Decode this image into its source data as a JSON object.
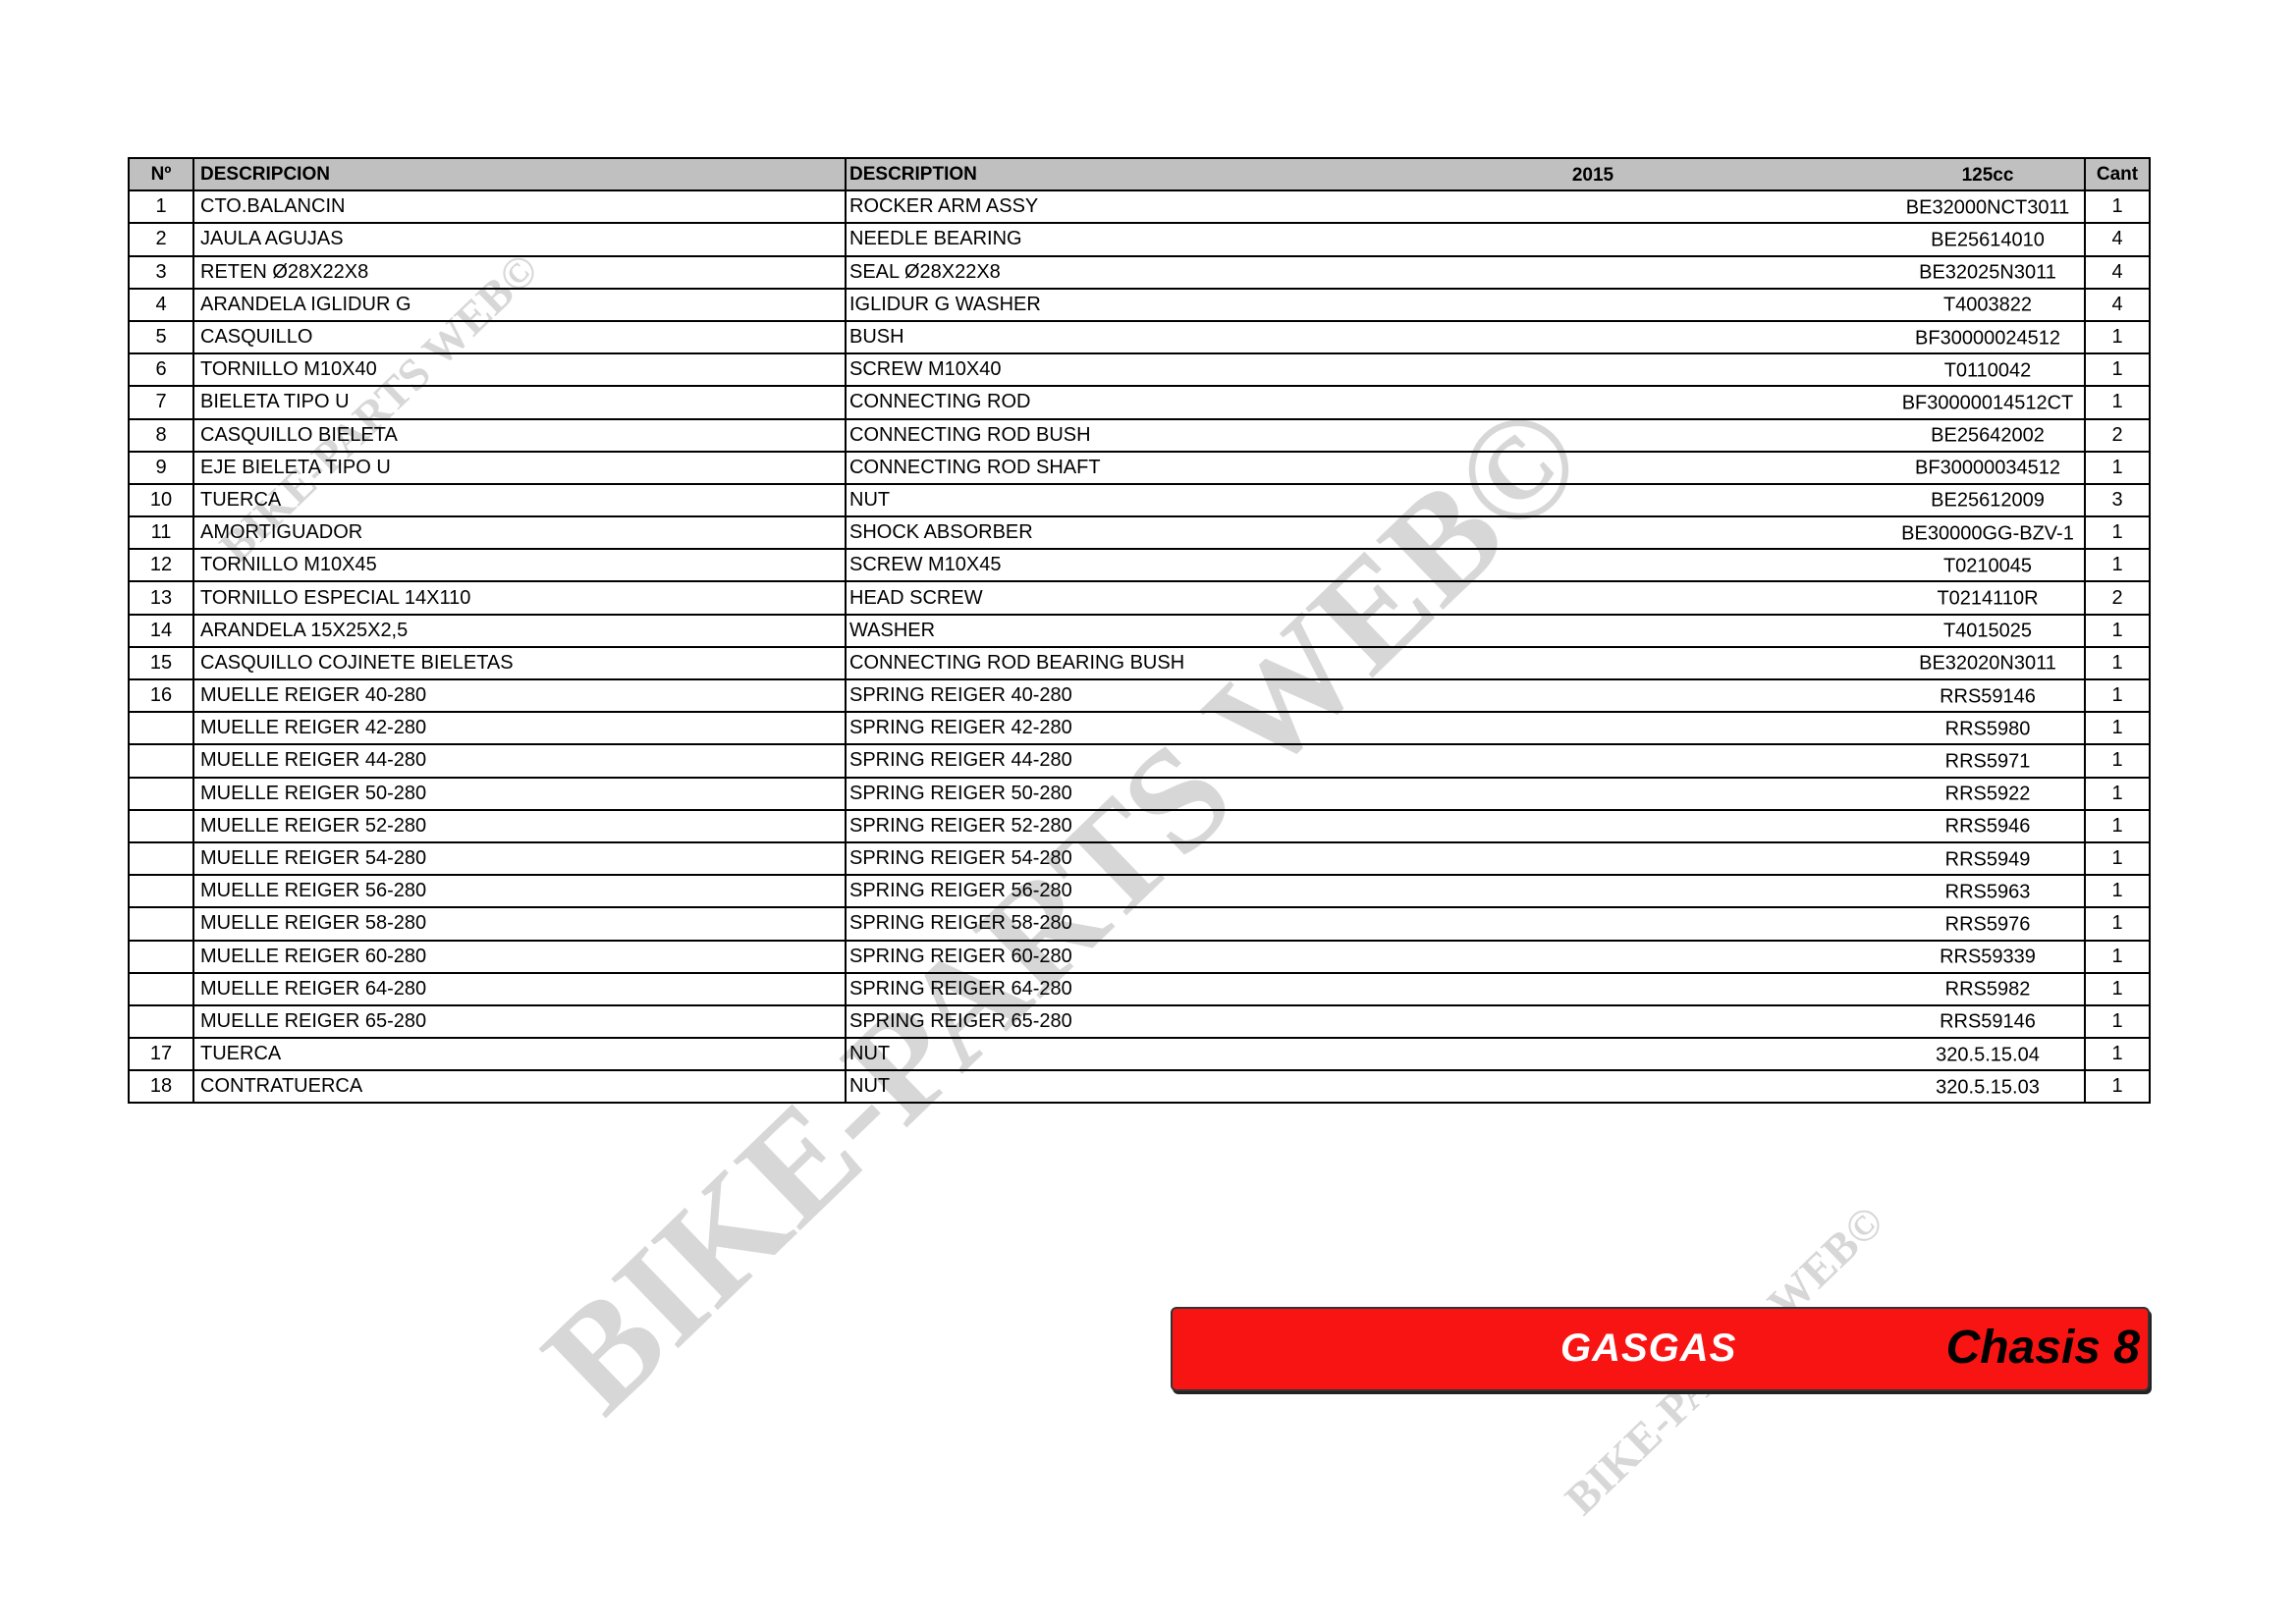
{
  "headers": {
    "no": "Nº",
    "descripcion": "DESCRIPCION",
    "description": "DESCRIPTION",
    "year": "2015",
    "model": "125cc",
    "qty": "Cant"
  },
  "rows": [
    {
      "no": "1",
      "es": "CTO.BALANCIN",
      "en": "ROCKER ARM ASSY",
      "part": "BE32000NCT3011",
      "qty": "1"
    },
    {
      "no": "2",
      "es": "JAULA AGUJAS",
      "en": "NEEDLE BEARING",
      "part": "BE25614010",
      "qty": "4"
    },
    {
      "no": "3",
      "es": "RETEN Ø28X22X8",
      "en": "SEAL Ø28X22X8",
      "part": "BE32025N3011",
      "qty": "4"
    },
    {
      "no": "4",
      "es": "ARANDELA IGLIDUR G",
      "en": "IGLIDUR G WASHER",
      "part": "T4003822",
      "qty": "4"
    },
    {
      "no": "5",
      "es": "CASQUILLO",
      "en": "BUSH",
      "part": "BF30000024512",
      "qty": "1"
    },
    {
      "no": "6",
      "es": "TORNILLO M10X40",
      "en": "SCREW M10X40",
      "part": "T0110042",
      "qty": "1"
    },
    {
      "no": "7",
      "es": "BIELETA TIPO U",
      "en": "CONNECTING ROD",
      "part": "BF30000014512CT",
      "qty": "1"
    },
    {
      "no": "8",
      "es": "CASQUILLO BIELETA",
      "en": "CONNECTING ROD BUSH",
      "part": "BE25642002",
      "qty": "2"
    },
    {
      "no": "9",
      "es": "EJE BIELETA TIPO U",
      "en": "CONNECTING ROD SHAFT",
      "part": "BF30000034512",
      "qty": "1"
    },
    {
      "no": "10",
      "es": "TUERCA",
      "en": "NUT",
      "part": "BE25612009",
      "qty": "3"
    },
    {
      "no": "11",
      "es": "AMORTIGUADOR",
      "en": "SHOCK ABSORBER",
      "part": "BE30000GG-BZV-1",
      "qty": "1"
    },
    {
      "no": "12",
      "es": "TORNILLO M10X45",
      "en": "SCREW M10X45",
      "part": "T0210045",
      "qty": "1"
    },
    {
      "no": "13",
      "es": "TORNILLO ESPECIAL 14X110",
      "en": "HEAD SCREW",
      "part": "T0214110R",
      "qty": "2"
    },
    {
      "no": "14",
      "es": "ARANDELA 15X25X2,5",
      "en": "WASHER",
      "part": "T4015025",
      "qty": "1"
    },
    {
      "no": "15",
      "es": "CASQUILLO COJINETE BIELETAS",
      "en": "CONNECTING ROD BEARING BUSH",
      "part": "BE32020N3011",
      "qty": "1"
    },
    {
      "no": "16",
      "es": "MUELLE REIGER 40-280",
      "en": "SPRING REIGER 40-280",
      "part": "RRS59146",
      "qty": "1"
    },
    {
      "no": "",
      "es": "MUELLE REIGER 42-280",
      "en": "SPRING REIGER 42-280",
      "part": "RRS5980",
      "qty": "1"
    },
    {
      "no": "",
      "es": "MUELLE REIGER 44-280",
      "en": "SPRING REIGER 44-280",
      "part": "RRS5971",
      "qty": "1"
    },
    {
      "no": "",
      "es": "MUELLE REIGER 50-280",
      "en": "SPRING REIGER 50-280",
      "part": "RRS5922",
      "qty": "1"
    },
    {
      "no": "",
      "es": "MUELLE REIGER 52-280",
      "en": "SPRING REIGER 52-280",
      "part": "RRS5946",
      "qty": "1"
    },
    {
      "no": "",
      "es": "MUELLE REIGER 54-280",
      "en": "SPRING REIGER 54-280",
      "part": "RRS5949",
      "qty": "1"
    },
    {
      "no": "",
      "es": "MUELLE REIGER 56-280",
      "en": "SPRING REIGER 56-280",
      "part": "RRS5963",
      "qty": "1"
    },
    {
      "no": "",
      "es": "MUELLE REIGER 58-280",
      "en": "SPRING REIGER 58-280",
      "part": "RRS5976",
      "qty": "1"
    },
    {
      "no": "",
      "es": "MUELLE REIGER 60-280",
      "en": "SPRING REIGER 60-280",
      "part": "RRS59339",
      "qty": "1"
    },
    {
      "no": "",
      "es": "MUELLE REIGER 64-280",
      "en": "SPRING REIGER 64-280",
      "part": "RRS5982",
      "qty": "1"
    },
    {
      "no": "",
      "es": "MUELLE REIGER 65-280",
      "en": "SPRING REIGER 65-280",
      "part": "RRS59146",
      "qty": "1"
    },
    {
      "no": "17",
      "es": "TUERCA",
      "en": "NUT",
      "part": "320.5.15.04",
      "qty": "1"
    },
    {
      "no": "18",
      "es": "CONTRATUERCA",
      "en": "NUT",
      "part": "320.5.15.03",
      "qty": "1"
    }
  ],
  "footer": {
    "brand": "GASGAS",
    "section": "Chasis 8",
    "color": "#f91414"
  },
  "watermark": "BIKE-PARTS WEB©"
}
